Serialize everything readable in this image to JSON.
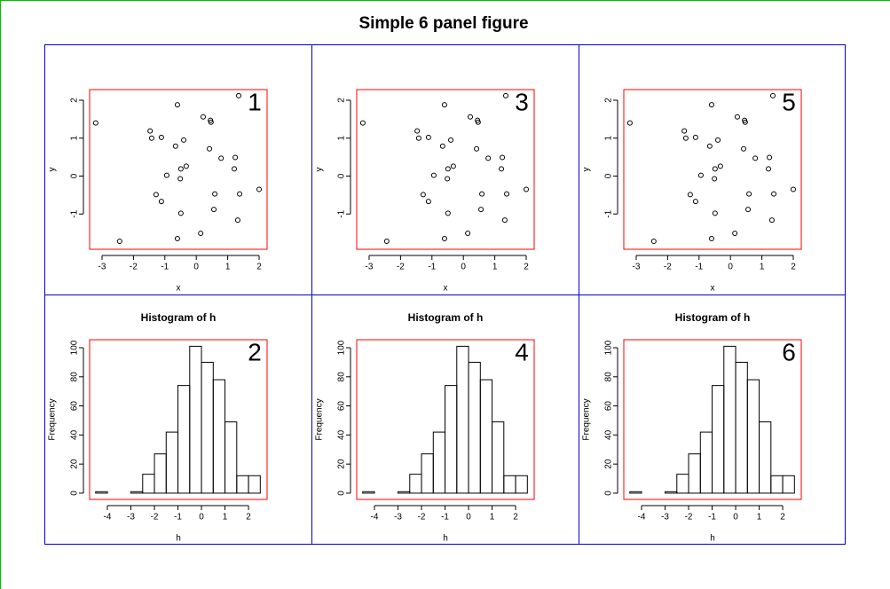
{
  "title": "Simple 6 panel figure",
  "chart_data": [
    {
      "type": "scatter",
      "annotation": "1",
      "xlabel": "x",
      "ylabel": "y",
      "x": [
        -3.2,
        -2.44,
        -1.47,
        -1.42,
        -1.11,
        -1.28,
        -1.11,
        -0.94,
        -0.66,
        -0.6,
        -0.4,
        -0.49,
        -0.32,
        -0.51,
        -0.49,
        -0.6,
        0.14,
        0.22,
        0.45,
        0.47,
        0.42,
        0.79,
        0.59,
        0.56,
        1.24,
        1.21,
        1.35,
        1.38,
        1.32,
        2.0
      ],
      "y": [
        1.4,
        -1.72,
        1.19,
        1.0,
        1.02,
        -0.49,
        -0.67,
        0.02,
        0.79,
        1.88,
        0.95,
        0.19,
        0.26,
        -0.07,
        -0.98,
        -1.65,
        -1.51,
        1.56,
        1.47,
        1.42,
        0.72,
        0.47,
        -0.47,
        -0.88,
        0.49,
        0.19,
        2.12,
        -0.47,
        -1.16,
        -0.35
      ],
      "xlim": [
        -3.395,
        2.254
      ],
      "ylim": [
        -1.93,
        2.28
      ],
      "xticks": [
        -3,
        -2,
        -1,
        0,
        1,
        2
      ],
      "yticks": [
        -1,
        0,
        1,
        2
      ],
      "color": "#000000",
      "box_color": "#ff0000"
    },
    {
      "type": "histogram",
      "title": "Histogram of h",
      "annotation": "2",
      "xlabel": "h",
      "ylabel": "Frequency",
      "bins": [
        -4.5,
        -4,
        -3.5,
        -3,
        -2.5,
        -2,
        -1.5,
        -1,
        -0.5,
        0,
        0.5,
        1,
        1.5,
        2,
        2.5
      ],
      "counts": [
        1,
        0,
        0,
        1,
        13,
        27,
        42,
        74,
        101,
        90,
        78,
        49,
        12,
        12
      ],
      "xlim": [
        -4.755,
        2.79
      ],
      "ylim": [
        -4.3,
        105.5
      ],
      "xticks": [
        -4,
        -3,
        -2,
        -1,
        0,
        1,
        2
      ],
      "yticks": [
        0,
        20,
        40,
        60,
        80,
        100
      ],
      "color": "#000000",
      "box_color": "#ff0000"
    },
    {
      "type": "scatter",
      "annotation": "3",
      "xlabel": "x",
      "ylabel": "y",
      "x": [
        -3.2,
        -2.44,
        -1.47,
        -1.42,
        -1.11,
        -1.28,
        -1.11,
        -0.94,
        -0.66,
        -0.6,
        -0.4,
        -0.49,
        -0.32,
        -0.51,
        -0.49,
        -0.6,
        0.14,
        0.22,
        0.45,
        0.47,
        0.42,
        0.79,
        0.59,
        0.56,
        1.24,
        1.21,
        1.35,
        1.38,
        1.32,
        2.0
      ],
      "y": [
        1.4,
        -1.72,
        1.19,
        1.0,
        1.02,
        -0.49,
        -0.67,
        0.02,
        0.79,
        1.88,
        0.95,
        0.19,
        0.26,
        -0.07,
        -0.98,
        -1.65,
        -1.51,
        1.56,
        1.47,
        1.42,
        0.72,
        0.47,
        -0.47,
        -0.88,
        0.49,
        0.19,
        2.12,
        -0.47,
        -1.16,
        -0.35
      ],
      "xlim": [
        -3.395,
        2.254
      ],
      "ylim": [
        -1.93,
        2.28
      ],
      "xticks": [
        -3,
        -2,
        -1,
        0,
        1,
        2
      ],
      "yticks": [
        -1,
        0,
        1,
        2
      ],
      "color": "#000000",
      "box_color": "#ff0000"
    },
    {
      "type": "histogram",
      "title": "Histogram of h",
      "annotation": "4",
      "xlabel": "h",
      "ylabel": "Frequency",
      "bins": [
        -4.5,
        -4,
        -3.5,
        -3,
        -2.5,
        -2,
        -1.5,
        -1,
        -0.5,
        0,
        0.5,
        1,
        1.5,
        2,
        2.5
      ],
      "counts": [
        1,
        0,
        0,
        1,
        13,
        27,
        42,
        74,
        101,
        90,
        78,
        49,
        12,
        12
      ],
      "xlim": [
        -4.755,
        2.79
      ],
      "ylim": [
        -4.3,
        105.5
      ],
      "xticks": [
        -4,
        -3,
        -2,
        -1,
        0,
        1,
        2
      ],
      "yticks": [
        0,
        20,
        40,
        60,
        80,
        100
      ],
      "color": "#000000",
      "box_color": "#ff0000"
    },
    {
      "type": "scatter",
      "annotation": "5",
      "xlabel": "x",
      "ylabel": "y",
      "x": [
        -3.2,
        -2.44,
        -1.47,
        -1.42,
        -1.11,
        -1.28,
        -1.11,
        -0.94,
        -0.66,
        -0.6,
        -0.4,
        -0.49,
        -0.32,
        -0.51,
        -0.49,
        -0.6,
        0.14,
        0.22,
        0.45,
        0.47,
        0.42,
        0.79,
        0.59,
        0.56,
        1.24,
        1.21,
        1.35,
        1.38,
        1.32,
        2.0
      ],
      "y": [
        1.4,
        -1.72,
        1.19,
        1.0,
        1.02,
        -0.49,
        -0.67,
        0.02,
        0.79,
        1.88,
        0.95,
        0.19,
        0.26,
        -0.07,
        -0.98,
        -1.65,
        -1.51,
        1.56,
        1.47,
        1.42,
        0.72,
        0.47,
        -0.47,
        -0.88,
        0.49,
        0.19,
        2.12,
        -0.47,
        -1.16,
        -0.35
      ],
      "xlim": [
        -3.395,
        2.254
      ],
      "ylim": [
        -1.93,
        2.28
      ],
      "xticks": [
        -3,
        -2,
        -1,
        0,
        1,
        2
      ],
      "yticks": [
        -1,
        0,
        1,
        2
      ],
      "color": "#000000",
      "box_color": "#ff0000"
    },
    {
      "type": "histogram",
      "title": "Histogram of h",
      "annotation": "6",
      "xlabel": "h",
      "ylabel": "Frequency",
      "bins": [
        -4.5,
        -4,
        -3.5,
        -3,
        -2.5,
        -2,
        -1.5,
        -1,
        -0.5,
        0,
        0.5,
        1,
        1.5,
        2,
        2.5
      ],
      "counts": [
        1,
        0,
        0,
        1,
        13,
        27,
        42,
        74,
        101,
        90,
        78,
        49,
        12,
        12
      ],
      "xlim": [
        -4.755,
        2.79
      ],
      "ylim": [
        -4.3,
        105.5
      ],
      "xticks": [
        -4,
        -3,
        -2,
        -1,
        0,
        1,
        2
      ],
      "yticks": [
        0,
        20,
        40,
        60,
        80,
        100
      ],
      "color": "#000000",
      "box_color": "#ff0000"
    }
  ]
}
